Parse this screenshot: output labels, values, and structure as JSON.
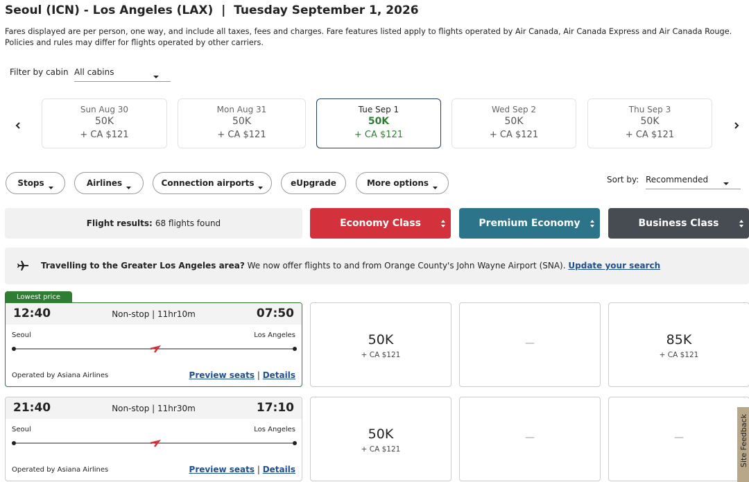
{
  "header": {
    "title": "Seoul (ICN) - Los Angeles (LAX)  |  Tuesday September 1, 2026",
    "notice": "Fares displayed are per person, one way, and include all taxes, fees and charges. Fare features listed apply to flights operated by Air Canada, Air Canada Express and Air Canada Rouge. Policies and rules may differ for flights operated by other carriers."
  },
  "filter": {
    "label": "Filter by cabin",
    "value": "All cabins"
  },
  "dates": [
    {
      "day": "Sun Aug 30",
      "points": "50K",
      "cash": "+ CA $121"
    },
    {
      "day": "Mon Aug 31",
      "points": "50K",
      "cash": "+ CA $121"
    },
    {
      "day": "Tue Sep 1",
      "points": "50K",
      "cash": "+ CA $121",
      "selected": true
    },
    {
      "day": "Wed Sep 2",
      "points": "50K",
      "cash": "+ CA $121"
    },
    {
      "day": "Thu Sep 3",
      "points": "50K",
      "cash": "+ CA $121"
    }
  ],
  "filters": [
    {
      "label": "Stops",
      "dropdown": true
    },
    {
      "label": "Airlines",
      "dropdown": true
    },
    {
      "label": "Connection airports",
      "dropdown": true
    },
    {
      "label": "eUpgrade",
      "dropdown": false
    },
    {
      "label": "More options",
      "dropdown": true
    }
  ],
  "sort": {
    "label": "Sort by:",
    "value": "Recommended"
  },
  "results": {
    "label": "Flight results:",
    "value": "68 flights found"
  },
  "cabins": [
    {
      "label": "Economy Class",
      "color": "#d3313b"
    },
    {
      "label": "Premium Economy",
      "color": "#2b7489"
    },
    {
      "label": "Business Class",
      "color": "#474c52"
    }
  ],
  "banner": {
    "bold": "Travelling to the Greater Los Angeles area?",
    "text": "We now offer flights to and from Orange County's John Wayne Airport (SNA).",
    "link": "Update your search"
  },
  "flights": [
    {
      "badge": "Lowest price",
      "depart": "12:40",
      "info": "Non-stop | 11hr10m",
      "arrive": "07:50",
      "origin": "Seoul",
      "destination": "Los Angeles",
      "operator": "Operated by Asiana Airlines",
      "preview": "Preview seats",
      "separator": "|",
      "details": "Details",
      "fares": [
        {
          "points": "50K",
          "cash": "+ CA $121"
        },
        {
          "none": "—"
        },
        {
          "points": "85K",
          "cash": "+ CA $121"
        }
      ]
    },
    {
      "depart": "21:40",
      "info": "Non-stop | 11hr30m",
      "arrive": "17:10",
      "origin": "Seoul",
      "destination": "Los Angeles",
      "operator": "Operated by Asiana Airlines",
      "preview": "Preview seats",
      "separator": "|",
      "details": "Details",
      "fares": [
        {
          "points": "50K",
          "cash": "+ CA $121"
        },
        {
          "none": "—"
        },
        {
          "none": "—"
        }
      ]
    }
  ],
  "feedback": "Site Feedback"
}
